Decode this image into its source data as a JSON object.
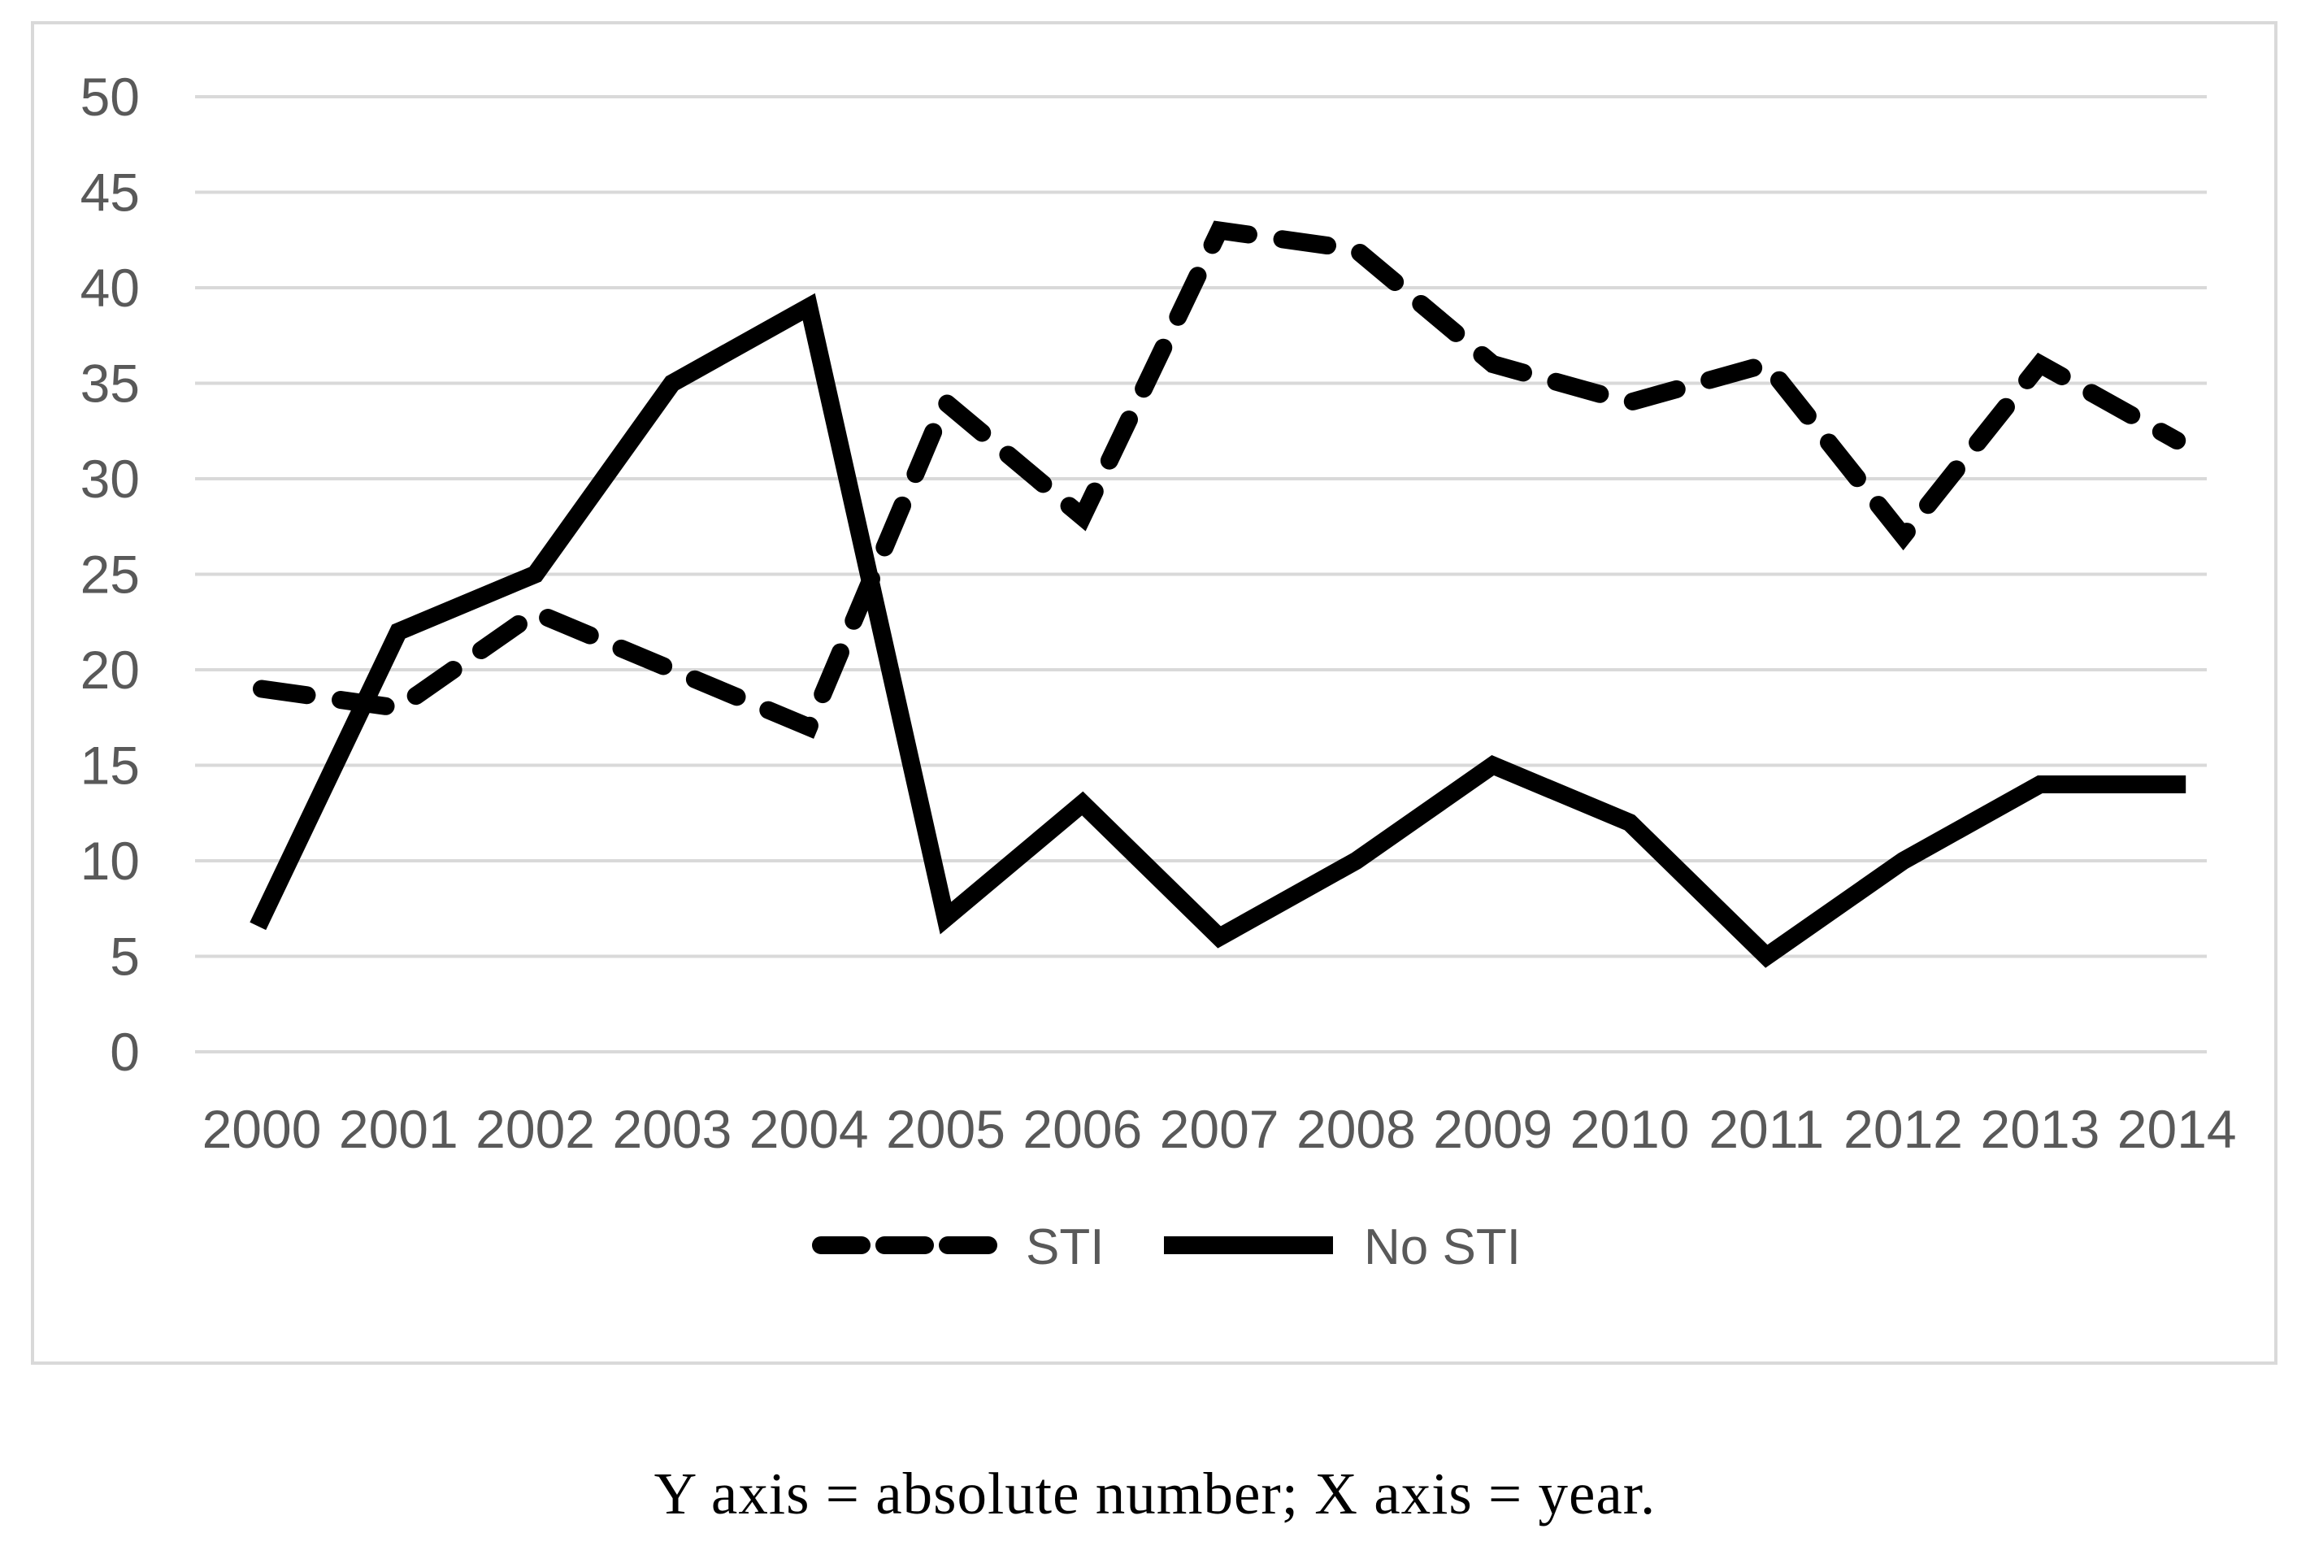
{
  "figure": {
    "caption": "Y axis = absolute number; X axis = year."
  },
  "chart_data": {
    "type": "line",
    "title": "",
    "xlabel": "year",
    "ylabel": "absolute number",
    "categories": [
      "2000",
      "2001",
      "2002",
      "2003",
      "2004",
      "2005",
      "2006",
      "2007",
      "2008",
      "2009",
      "2010",
      "2011",
      "2012",
      "2013",
      "2014"
    ],
    "series": [
      {
        "name": "STI",
        "style": "dashed",
        "color": "#000000",
        "values": [
          19,
          18,
          23,
          20,
          17,
          34,
          28,
          43,
          42,
          36,
          34,
          36,
          27,
          36,
          32
        ]
      },
      {
        "name": "No STI",
        "style": "solid",
        "color": "#000000",
        "values": [
          7,
          22,
          25,
          35,
          39,
          7,
          13,
          6,
          10,
          15,
          12,
          5,
          10,
          14,
          14
        ]
      }
    ],
    "ylim": [
      0,
      50
    ],
    "ytick_step": 5,
    "yticks": [
      "0",
      "5",
      "10",
      "15",
      "20",
      "25",
      "30",
      "35",
      "40",
      "45",
      "50"
    ],
    "grid": "horizontal-only",
    "legend_position": "bottom-center",
    "colors": {
      "line": "#000000",
      "gridline": "#d9d9d9",
      "frame": "#d9d9d9",
      "tick_label": "#595959",
      "legend_label": "#595959",
      "caption_text": "#000000",
      "background": "#ffffff"
    }
  }
}
